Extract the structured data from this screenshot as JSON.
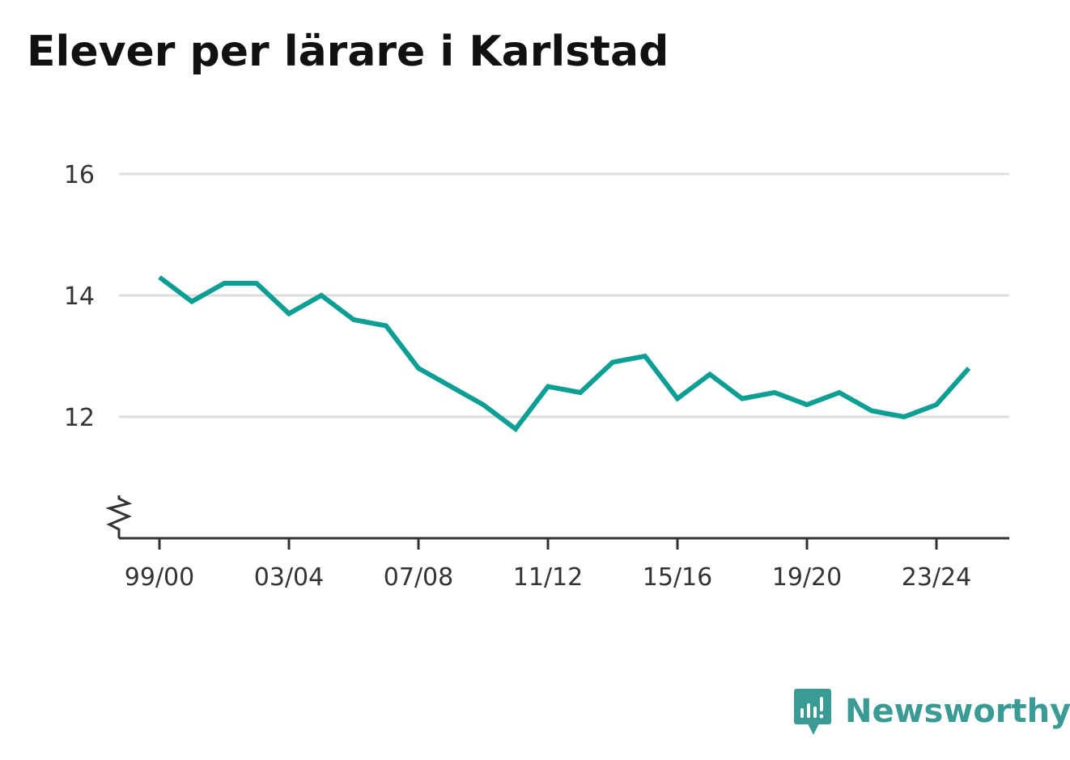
{
  "title": "Elever per lärare i Karlstad",
  "brand": {
    "name": "Newsworthy",
    "icon": "newsworthy-logo-icon",
    "color": "#3a9a94"
  },
  "colors": {
    "line": "#0d9f94",
    "grid": "#dddddd",
    "axis": "#333333"
  },
  "chart_data": {
    "type": "line",
    "title": "Elever per lärare i Karlstad",
    "xlabel": "",
    "ylabel": "",
    "categories": [
      "99/00",
      "00/01",
      "01/02",
      "02/03",
      "03/04",
      "04/05",
      "05/06",
      "06/07",
      "07/08",
      "08/09",
      "09/10",
      "10/11",
      "11/12",
      "12/13",
      "13/14",
      "14/15",
      "15/16",
      "16/17",
      "17/18",
      "18/19",
      "19/20",
      "20/21",
      "21/22",
      "22/23",
      "23/24",
      "24/25"
    ],
    "x_tick_labels": [
      "99/00",
      "03/04",
      "07/08",
      "11/12",
      "15/16",
      "19/20",
      "23/24"
    ],
    "y_ticks": [
      12,
      14,
      16
    ],
    "ylim": [
      10.0,
      16.0
    ],
    "axis_break": true,
    "grid": true,
    "series": [
      {
        "values": [
          14.3,
          13.9,
          14.2,
          14.2,
          13.7,
          14.0,
          13.6,
          13.5,
          12.8,
          12.5,
          12.2,
          11.8,
          12.5,
          12.4,
          12.9,
          13.0,
          12.3,
          12.7,
          12.3,
          12.4,
          12.2,
          12.4,
          12.1,
          12.0,
          12.2,
          12.8
        ]
      }
    ]
  }
}
